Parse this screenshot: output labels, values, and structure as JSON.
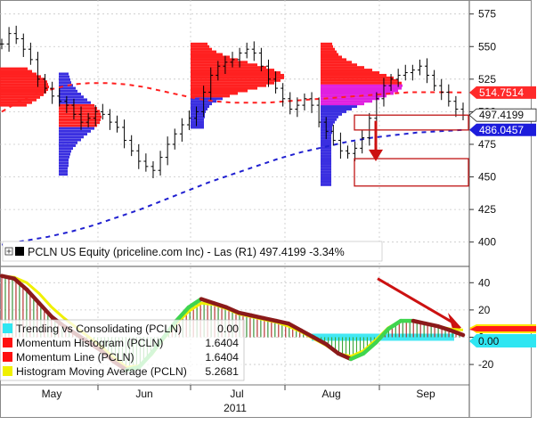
{
  "colors": {
    "red_price": "#ff2020",
    "blue_volume": "#3a2fe0",
    "magenta": "#e020e0",
    "dashed_red": "#ff2020",
    "dashed_blue": "#2020d0",
    "momentum_green": "#3fd54f",
    "momentum_darkred": "#8b1a1a",
    "histogram_avg_yellow": "#f0f000",
    "trending_cyan": "#2fe6f2",
    "arrow_red": "#cc1111"
  },
  "chart_data": [
    {
      "type": "line",
      "panel": "price",
      "legend_title": "PCLN US Equity (priceline.com Inc) - Las (R1) 497.4199 -3.34%",
      "yticks": [
        400,
        425,
        450,
        475,
        500,
        525,
        550,
        575
      ],
      "ylim": [
        382,
        583
      ],
      "x_months": [
        "May",
        "Jun",
        "Jul",
        "Aug",
        "Sep"
      ],
      "x_year": "2011",
      "price_labels": [
        {
          "value": "514.7514",
          "y": 514.75,
          "style": "red"
        },
        {
          "value": "497.4199",
          "y": 497.42,
          "style": "white"
        },
        {
          "value": "486.0457",
          "y": 486.05,
          "style": "blue"
        }
      ],
      "series": [
        {
          "name": "PCLN US Equity (priceline.com Inc) - Las (R1)",
          "approx_closes": [
            552,
            560,
            556,
            548,
            540,
            525,
            518,
            512,
            508,
            505,
            498,
            492,
            495,
            500,
            498,
            492,
            488,
            478,
            470,
            462,
            458,
            455,
            465,
            475,
            483,
            490,
            495,
            500,
            515,
            528,
            535,
            538,
            540,
            545,
            548,
            545,
            535,
            525,
            518,
            510,
            502,
            505,
            510,
            505,
            492,
            485,
            478,
            470,
            468,
            472,
            480,
            495,
            510,
            520,
            525,
            528,
            530,
            532,
            535,
            528,
            520,
            515,
            508,
            502,
            497.42
          ]
        },
        {
          "name": "Moving average (red dashed)",
          "approx": [
            500,
            508,
            514,
            518,
            521,
            522,
            522,
            521,
            519,
            516,
            513,
            510,
            508,
            507,
            507,
            507,
            508,
            509,
            510,
            511,
            512,
            513,
            514,
            515,
            515,
            515,
            514.75
          ]
        },
        {
          "name": "Moving average (blue dashed)",
          "approx": [
            398,
            401,
            404,
            408,
            413,
            419,
            425,
            432,
            439,
            446,
            452,
            458,
            464,
            469,
            473,
            477,
            480,
            482,
            484,
            485,
            486.05
          ]
        }
      ]
    },
    {
      "type": "line",
      "panel": "momentum",
      "yticks": [
        -20,
        0,
        20,
        40
      ],
      "ylim": [
        -35,
        50
      ],
      "value_badges": [
        "0.00"
      ],
      "legend": [
        {
          "label": "Trending vs Consolidating (PCLN)",
          "value": "0.00",
          "color": "#2fe6f2"
        },
        {
          "label": "Momentum Histogram (PCLN)",
          "value": "1.6404",
          "color": "#ff1010"
        },
        {
          "label": "Momentum Line (PCLN)",
          "value": "1.6404",
          "color": "#ff1010"
        },
        {
          "label": "Histogram Moving Average (PCLN)",
          "value": "5.2681",
          "color": "#f0f000"
        }
      ],
      "series": [
        {
          "name": "Momentum Line (PCLN)",
          "approx": [
            45,
            43,
            35,
            25,
            15,
            8,
            2,
            -4,
            -10,
            -18,
            -24,
            -22,
            -12,
            0,
            12,
            22,
            28,
            25,
            22,
            18,
            16,
            14,
            12,
            10,
            5,
            0,
            -5,
            -12,
            -16,
            -12,
            -4,
            6,
            12,
            12,
            10,
            8,
            5,
            1.64
          ]
        },
        {
          "name": "Histogram Moving Average (PCLN)",
          "approx": [
            45,
            44,
            40,
            32,
            22,
            14,
            7,
            0,
            -7,
            -15,
            -22,
            -21,
            -13,
            -1,
            10,
            19,
            25,
            24,
            21,
            17,
            15,
            13,
            11,
            8,
            4,
            -1,
            -6,
            -12,
            -14,
            -10,
            -2,
            7,
            12,
            12,
            10,
            8,
            6,
            5.27
          ]
        }
      ]
    }
  ]
}
